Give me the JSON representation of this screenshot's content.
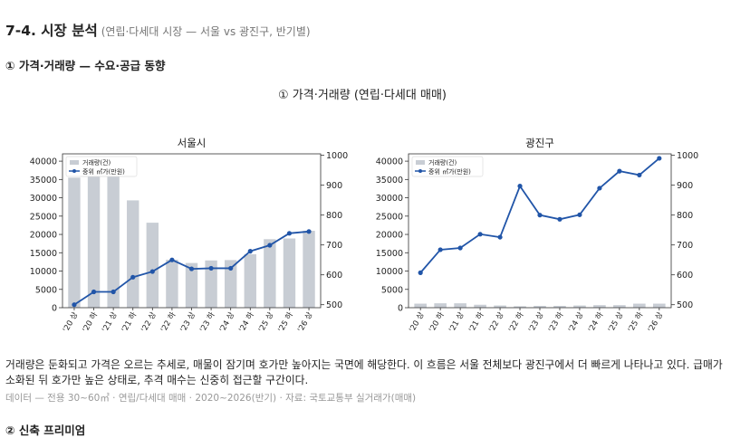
{
  "header": {
    "title": "7-4. 시장 분석",
    "subtitle": "(연립·다세대 시장 — 서울 vs 광진구, 반기별)"
  },
  "section1": {
    "label": "① 가격·거래량 — 수요·공급 동향"
  },
  "figure": {
    "title": "① 가격·거래량 (연립·다세대 매매)"
  },
  "chart_data": [
    {
      "type": "bar+line",
      "title": "서울시",
      "categories": [
        "'20 상",
        "'20 하",
        "'21 상",
        "'21 하",
        "'22 상",
        "'22 하",
        "'23 상",
        "'23 하",
        "'24 상",
        "'24 하",
        "'25 상",
        "'25 하",
        "'26 상"
      ],
      "series": [
        {
          "name": "거래량(건)",
          "type": "bar",
          "axis": "left",
          "color": "#c8cdd4",
          "values": [
            35500,
            37500,
            37500,
            29300,
            23200,
            13100,
            12200,
            12900,
            13000,
            14600,
            18700,
            18900,
            21000
          ]
        },
        {
          "name": "중위 ㎡가(만원)",
          "type": "line",
          "axis": "right",
          "color": "#2155a8",
          "values": [
            500,
            543,
            543,
            592,
            611,
            650,
            620,
            622,
            622,
            679,
            699,
            739,
            745
          ]
        }
      ],
      "y_left": {
        "ylim": [
          0,
          42000
        ],
        "ticks": [
          0,
          5000,
          10000,
          15000,
          20000,
          25000,
          30000,
          35000,
          40000
        ]
      },
      "y_right": {
        "ylim": [
          490,
          1005
        ],
        "ticks": [
          500,
          600,
          700,
          800,
          900,
          1000
        ]
      },
      "legend": "top-left"
    },
    {
      "type": "bar+line",
      "title": "광진구",
      "categories": [
        "'20 상",
        "'20 하",
        "'21 상",
        "'21 하",
        "'22 상",
        "'22 하",
        "'23 상",
        "'23 하",
        "'24 상",
        "'24 하",
        "'25 상",
        "'25 하",
        "'26 상"
      ],
      "series": [
        {
          "name": "거래량(건)",
          "type": "bar",
          "axis": "left",
          "color": "#c8cdd4",
          "values": [
            1100,
            1200,
            1200,
            800,
            600,
            400,
            500,
            500,
            600,
            700,
            700,
            1100,
            1100
          ]
        },
        {
          "name": "중위 ㎡가(만원)",
          "type": "line",
          "axis": "right",
          "color": "#2155a8",
          "values": [
            607,
            684,
            690,
            736,
            726,
            897,
            800,
            786,
            801,
            890,
            947,
            934,
            990
          ]
        }
      ],
      "y_left": {
        "ylim": [
          0,
          42000
        ],
        "ticks": [
          0,
          5000,
          10000,
          15000,
          20000,
          25000,
          30000,
          35000,
          40000
        ]
      },
      "y_right": {
        "ylim": [
          490,
          1005
        ],
        "ticks": [
          500,
          600,
          700,
          800,
          900,
          1000
        ]
      },
      "legend": "top-left"
    }
  ],
  "analysis": {
    "text": "거래량은 둔화되고 가격은 오르는 추세로, 매물이 잠기며 호가만 높아지는 국면에 해당한다. 이 흐름은 서울 전체보다 광진구에서 더 빠르게 나타나고 있다. 급매가 소화된 뒤 호가만 높은 상태로, 추격 매수는 신중히 접근할 구간이다."
  },
  "source": {
    "text": "데이터 — 전용 30~60㎡ · 연립/다세대 매매 · 2020~2026(반기) · 자료: 국토교통부 실거래가(매매)"
  },
  "section2": {
    "label": "② 신축 프리미엄"
  }
}
